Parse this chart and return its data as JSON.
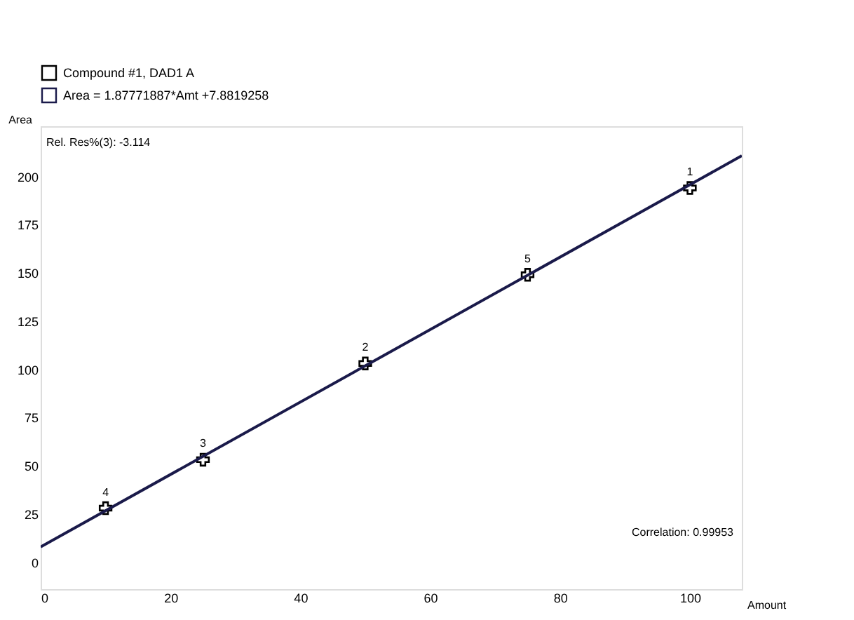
{
  "chart_data": {
    "type": "scatter",
    "xlabel": "Amount",
    "ylabel": "Area",
    "xlim": [
      0,
      108
    ],
    "ylim": [
      -14,
      226
    ],
    "xticks": [
      0,
      20,
      40,
      60,
      80,
      100
    ],
    "yticks": [
      0,
      25,
      50,
      75,
      100,
      125,
      150,
      175,
      200
    ],
    "grid": false,
    "legend": "top left",
    "marker": "cross",
    "series": [
      {
        "name": "Compound #1, DAD1 A",
        "color": "#000000",
        "x": [
          100,
          75,
          50,
          25,
          10
        ],
        "values": [
          194,
          149,
          103,
          53.1,
          28
        ]
      },
      {
        "name": "Area = 1.87771887*Amt +7.8819258",
        "type": "line",
        "marker": "none",
        "line_style": "solid",
        "color": "#1a1a4a",
        "x": [
          0,
          108
        ],
        "values": [
          7.9,
          210.7
        ]
      }
    ],
    "annotations": [
      {
        "text": "1",
        "x": 100,
        "y": 194
      },
      {
        "text": "5",
        "x": 75,
        "y": 149
      },
      {
        "text": "2",
        "x": 50,
        "y": 103
      },
      {
        "text": "3",
        "x": 25,
        "y": 53.1
      },
      {
        "text": "4",
        "x": 10,
        "y": 28
      },
      "Rel. Res%(3): -3.114",
      "Correlation: 0.99953"
    ]
  }
}
